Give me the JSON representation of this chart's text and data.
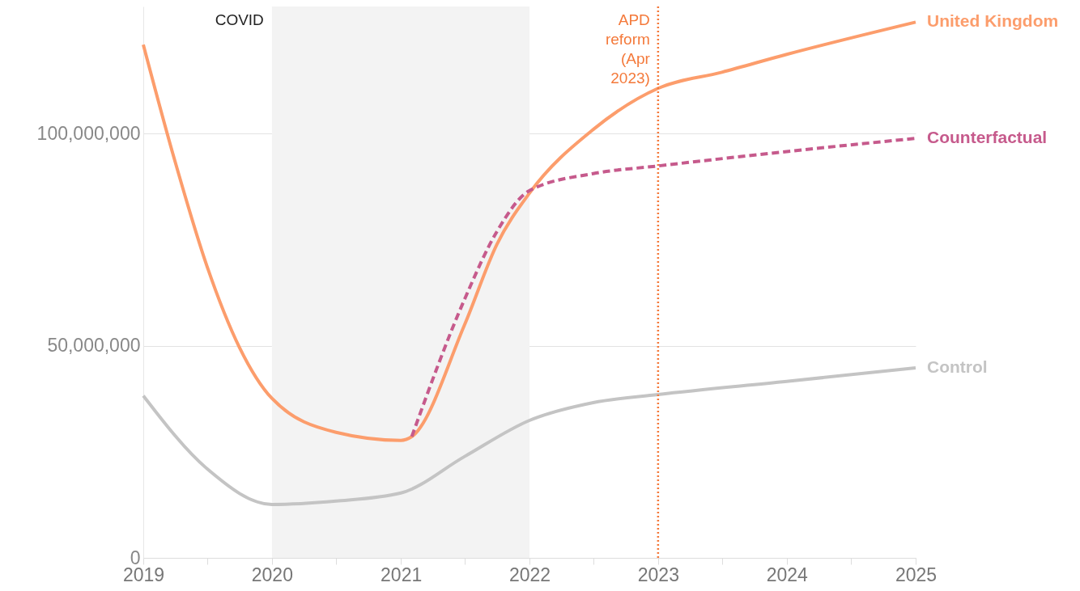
{
  "chart_data": {
    "type": "line",
    "x": [
      "2019",
      "2019-04",
      "2019-07",
      "2019-10",
      "2020",
      "2020-07",
      "2021",
      "2021-02",
      "2021-07",
      "2021-10",
      "2022",
      "2022-07",
      "2023",
      "2023-07",
      "2024",
      "2025"
    ],
    "series": [
      {
        "name": "United Kingdom",
        "color": "#fc9d6c",
        "values": [
          121000000,
          93500000,
          68700000,
          49600000,
          37600000,
          29600000,
          27700000,
          28600000,
          55000000,
          74000000,
          86000000,
          101000000,
          110700000,
          114500000,
          118700000,
          126300000
        ]
      },
      {
        "name": "Counterfactual",
        "color": "#c65a8c",
        "line_style": "dashed",
        "x": [
          "2021-02",
          "2021-07",
          "2021-10",
          "2022",
          "2022-07",
          "2023",
          "2024",
          "2025"
        ],
        "values": [
          28600000,
          61000000,
          77000000,
          86600000,
          90600000,
          92400000,
          95800000,
          98900000
        ]
      },
      {
        "name": "Control",
        "color": "#c4c4c4",
        "x": [
          "2019",
          "2019-07",
          "2020",
          "2020-07",
          "2021",
          "2021-07",
          "2022",
          "2022-07",
          "2023",
          "2024",
          "2025"
        ],
        "values": [
          38200000,
          21000000,
          12600000,
          13400000,
          15300000,
          23900000,
          32400000,
          36600000,
          38500000,
          41600000,
          44800000
        ]
      }
    ],
    "xlim": [
      "2019",
      "2025"
    ],
    "xticks": [
      {
        "value": "2019",
        "label": "2019"
      },
      {
        "value": "2019-07",
        "label": null
      },
      {
        "value": "2020",
        "label": "2020"
      },
      {
        "value": "2020-07",
        "label": null
      },
      {
        "value": "2021",
        "label": "2021"
      },
      {
        "value": "2021-07",
        "label": null
      },
      {
        "value": "2022",
        "label": "2022"
      },
      {
        "value": "2022-07",
        "label": null
      },
      {
        "value": "2023",
        "label": "2023"
      },
      {
        "value": "2023-07",
        "label": null
      },
      {
        "value": "2024",
        "label": "2024"
      },
      {
        "value": "2024-07",
        "label": null
      },
      {
        "value": "2025",
        "label": "2025"
      }
    ],
    "ylim": [
      0,
      130000000
    ],
    "yticks": [
      0,
      {
        "value": 50000000,
        "label": "50,000,000"
      },
      {
        "value": 100000000,
        "label": "100,000,000"
      }
    ],
    "grid": "y",
    "legend": false,
    "bands": [
      {
        "axis": "x",
        "from": "2020",
        "to": "2022",
        "label": "COVID",
        "color": "#f3f3f3"
      }
    ],
    "ref_lines": [
      {
        "axis": "x",
        "value": "2023",
        "label": "APD reform (Apr 2023)",
        "color": "#f4793a",
        "line_style": "dotted"
      }
    ]
  }
}
